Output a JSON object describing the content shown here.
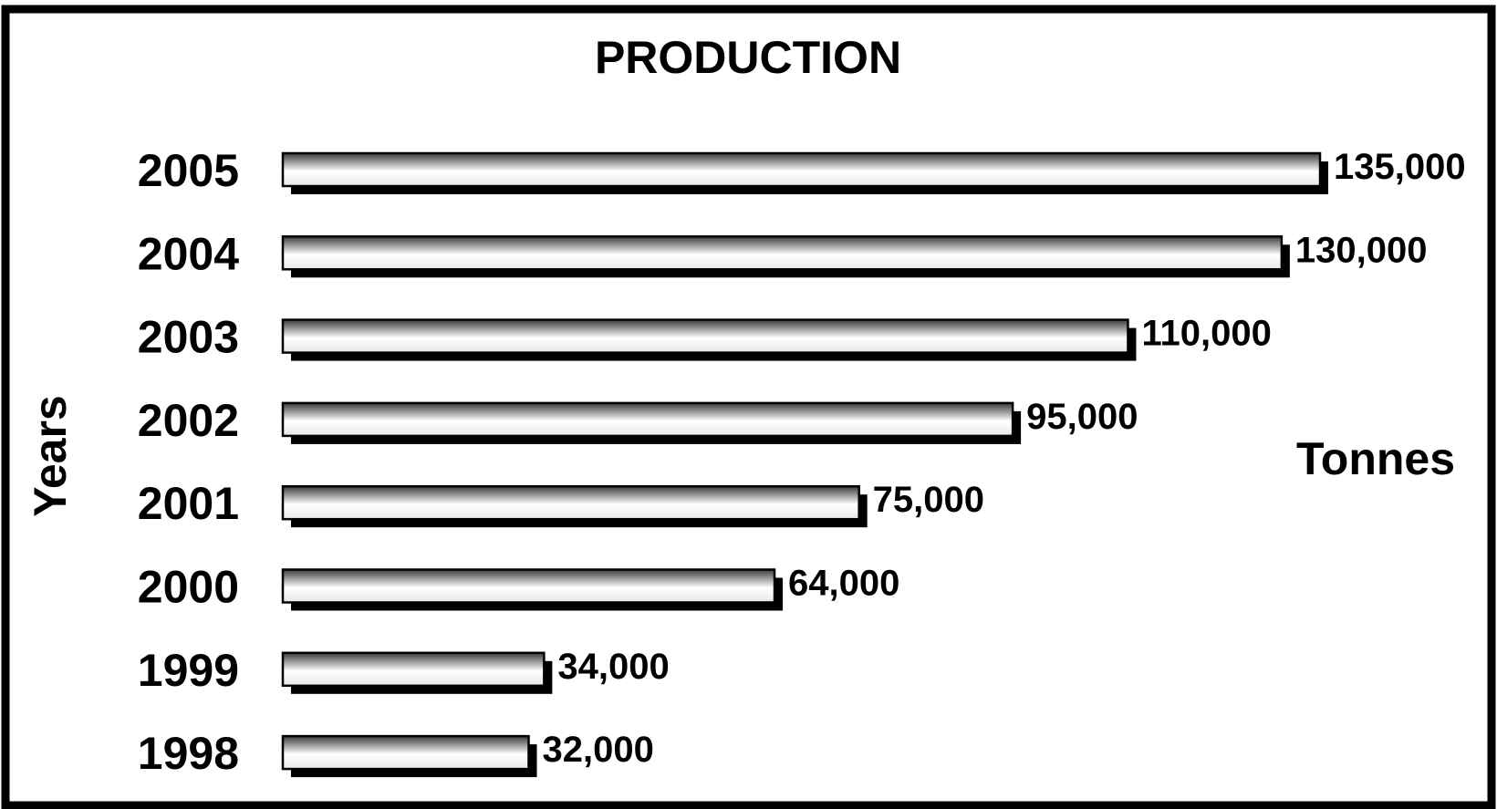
{
  "chart_data": {
    "type": "bar",
    "orientation": "horizontal",
    "title": "PRODUCTION",
    "ylabel": "Years",
    "xlabel": "Tonnes",
    "categories": [
      "2005",
      "2004",
      "2003",
      "2002",
      "2001",
      "2000",
      "1999",
      "1998"
    ],
    "values": [
      135000,
      130000,
      110000,
      95000,
      75000,
      64000,
      34000,
      32000
    ],
    "data_labels": [
      "135,000",
      "130,000",
      "110,000",
      "95,000",
      "75,000",
      "64,000",
      "34,000",
      "32,000"
    ],
    "xlim": [
      0,
      135000
    ],
    "grid": false,
    "legend": "none"
  },
  "colors": {
    "frame": "#000000",
    "bar_light": "#ffffff",
    "bar_dark": "#3a3a3a",
    "shadow": "#000000",
    "text": "#000000"
  }
}
